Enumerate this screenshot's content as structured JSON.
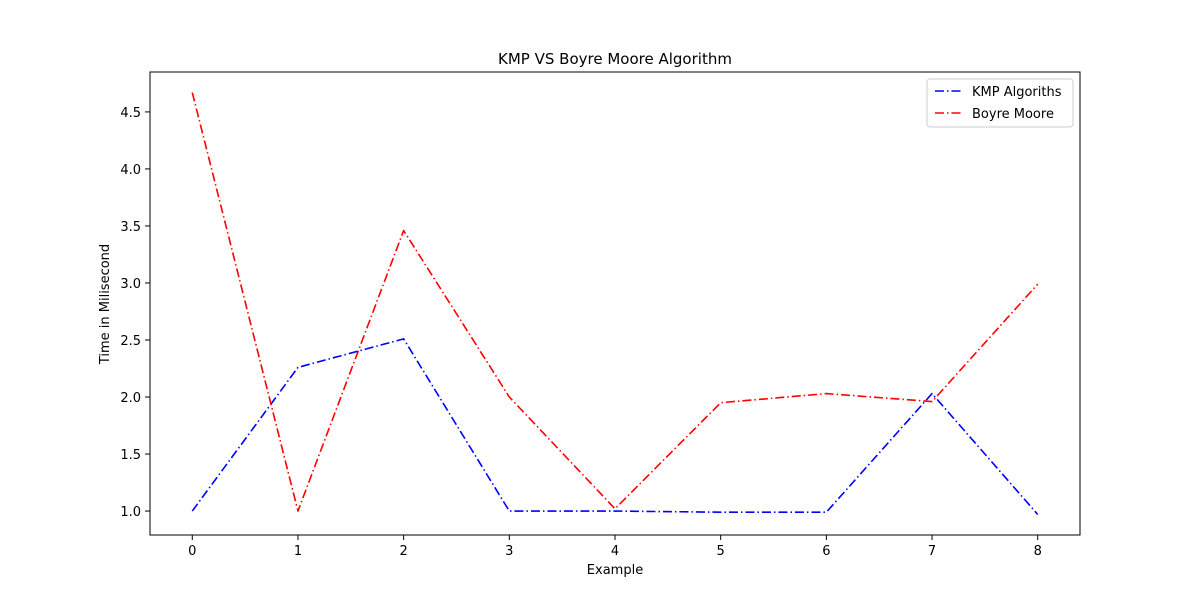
{
  "chart_data": {
    "type": "line",
    "title": "KMP VS Boyre Moore Algorithm",
    "xlabel": "Example",
    "ylabel": "Time in Milisecond",
    "x": [
      0,
      1,
      2,
      3,
      4,
      5,
      6,
      7,
      8
    ],
    "xlim": [
      -0.4,
      8.4
    ],
    "ylim": [
      0.79,
      4.85
    ],
    "x_ticks": [
      "0",
      "1",
      "2",
      "3",
      "4",
      "5",
      "6",
      "7",
      "8"
    ],
    "y_ticks": [
      "1.0",
      "1.5",
      "2.0",
      "2.5",
      "3.0",
      "3.5",
      "4.0",
      "4.5"
    ],
    "grid": false,
    "legend_position": "top-right",
    "series": [
      {
        "name": "KMP Algoriths",
        "color": "#0000ff",
        "line_style": "dash-dot",
        "values": [
          1.0,
          2.26,
          2.51,
          1.0,
          1.0,
          0.99,
          0.99,
          2.03,
          0.97
        ]
      },
      {
        "name": "Boyre Moore",
        "color": "#ff0000",
        "line_style": "dash-dot",
        "values": [
          4.67,
          1.0,
          3.46,
          2.0,
          1.02,
          1.95,
          2.03,
          1.96,
          2.99
        ]
      }
    ]
  }
}
